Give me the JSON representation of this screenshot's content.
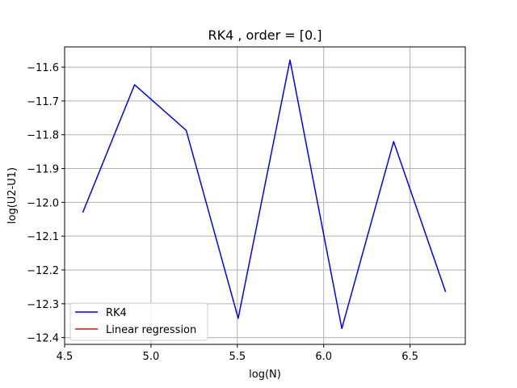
{
  "chart_data": {
    "type": "line",
    "title": "RK4 , order = [0.]",
    "xlabel": "log(N)",
    "ylabel": "log(U2-U1)",
    "xlim": [
      4.5,
      6.82
    ],
    "ylim": [
      -12.42,
      -11.54
    ],
    "xticks": [
      4.5,
      5.0,
      5.5,
      6.0,
      6.5
    ],
    "xtick_labels": [
      "4.5",
      "5.0",
      "5.5",
      "6.0",
      "6.5"
    ],
    "yticks": [
      -12.4,
      -12.3,
      -12.2,
      -12.1,
      -12.0,
      -11.9,
      -11.8,
      -11.7,
      -11.6
    ],
    "ytick_labels": [
      "−12.4",
      "−12.3",
      "−12.2",
      "−12.1",
      "−12.0",
      "−11.9",
      "−11.8",
      "−11.7",
      "−11.6"
    ],
    "grid": true,
    "legend": "lower-left",
    "series": [
      {
        "name": "RK4",
        "color": "#0000ff",
        "x": [
          4.605,
          4.905,
          5.204,
          5.505,
          5.805,
          6.105,
          6.405,
          6.706
        ],
        "y": [
          -12.03,
          -11.652,
          -11.787,
          -12.343,
          -11.579,
          -12.373,
          -11.82,
          -12.265
        ]
      },
      {
        "name": "Linear regression",
        "color": "#ff0000",
        "x": [],
        "y": []
      }
    ]
  }
}
